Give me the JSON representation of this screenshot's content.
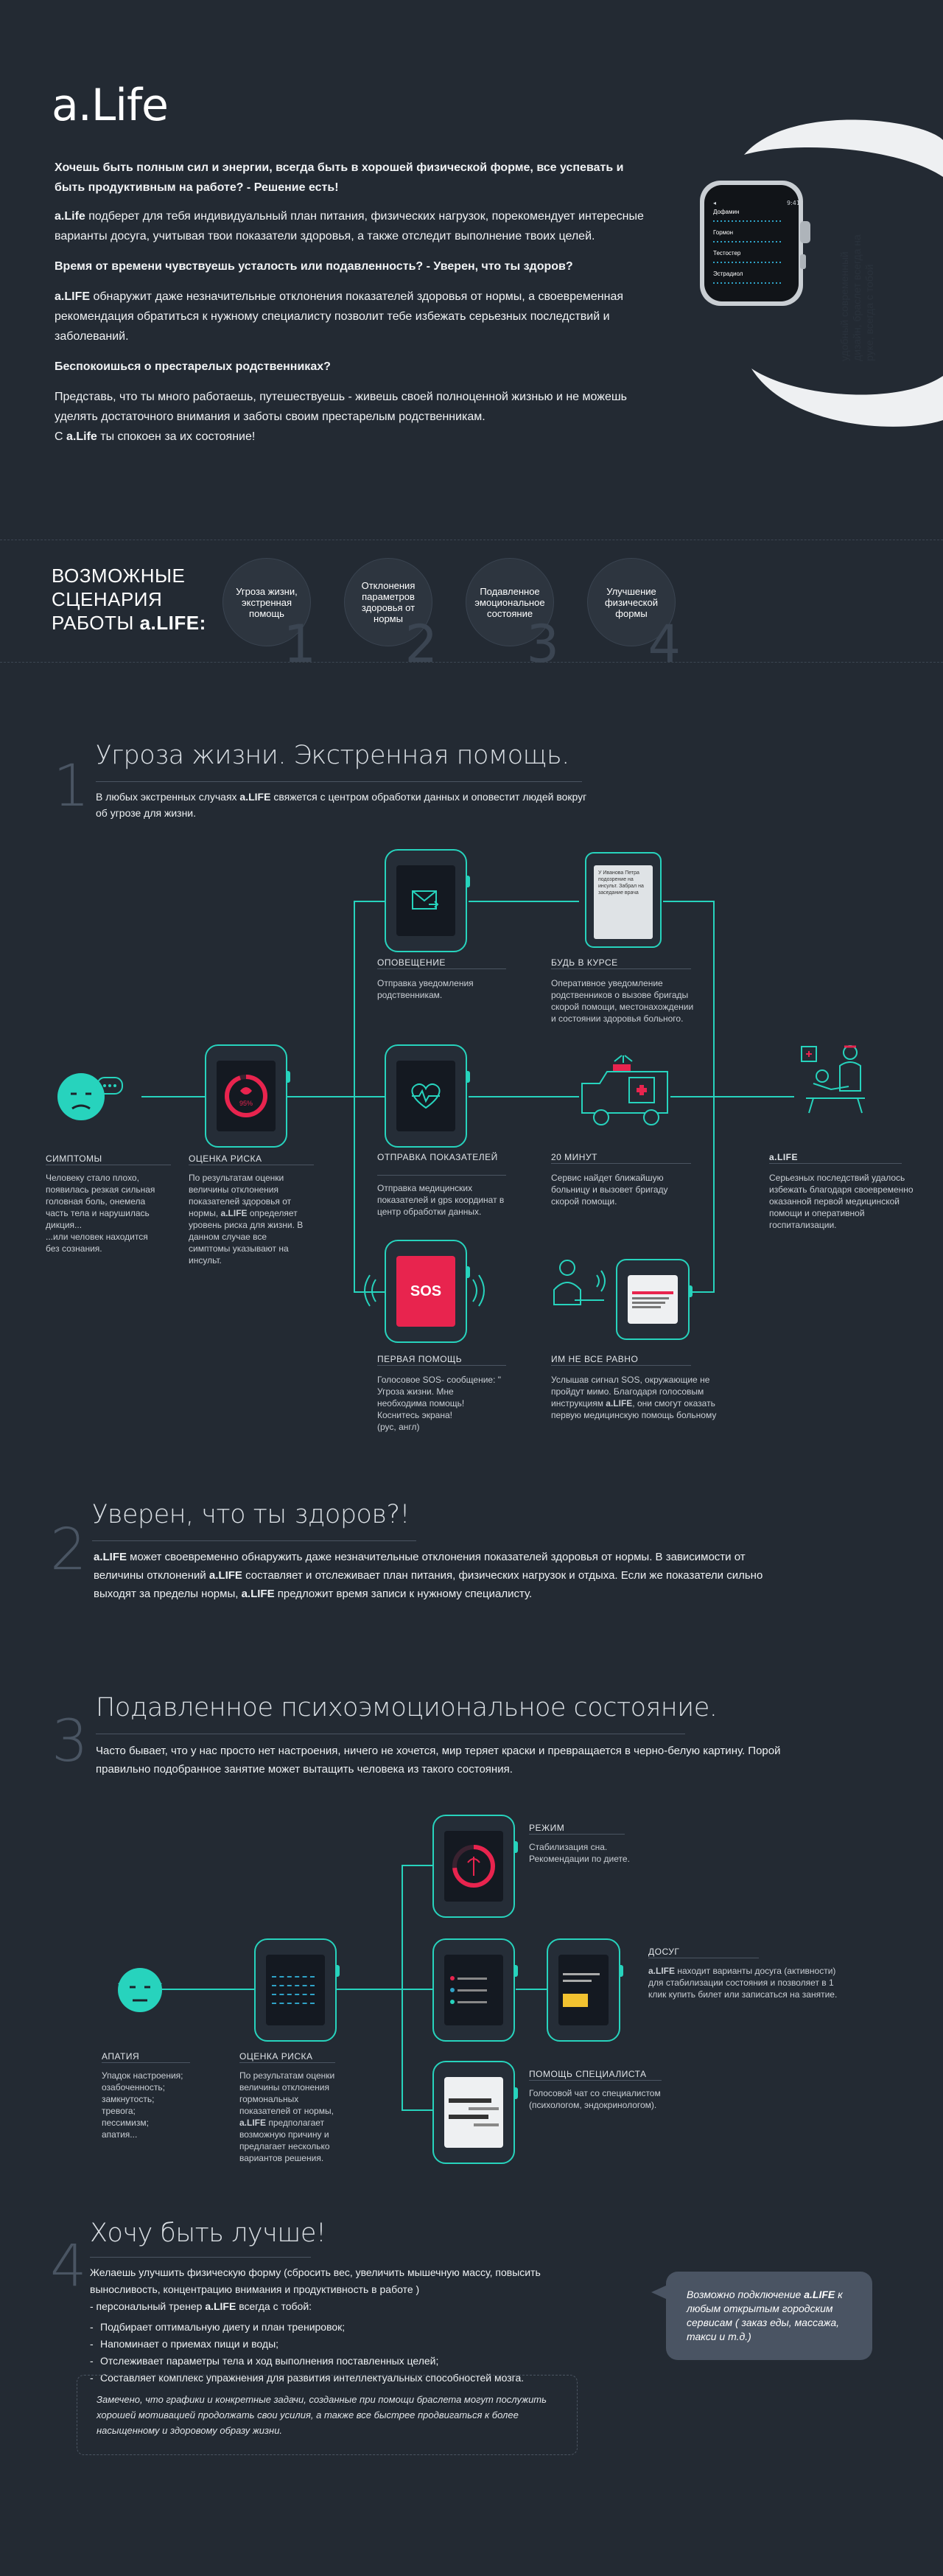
{
  "app": {
    "logo": "a.Life"
  },
  "intro": {
    "p1": "Хочешь быть полным сил и энергии, всегда быть в хорошей физической форме, все успевать и быть продуктивным на работе? - Решение есть!",
    "p2_brand": "a.Life",
    "p2": " подберет для тебя индивидуальный план питания, физических нагрузок, порекомендует интересные варианты досуга, учитывая твои показатели здоровья, а также отследит выполнение твоих целей.",
    "p3": "Время от времени чувствуешь усталость или подавленность? - Уверен, что ты здоров?",
    "p4_brand": "a.LIFE",
    "p4": " обнаружит даже незначительные отклонения показателей здоровья от нормы, а своевременная рекомендация обратиться к нужному специалисту позволит тебе избежать серьезных последствий и заболеваний.",
    "p5": "Беспокоишься о престарелых родственниках?",
    "p6": "Представь, что ты много работаешь, путешествуешь - живешь своей полноценной жизнью  и не можешь уделять достаточного внимания и заботы своим престарелым родственникам.",
    "p7_pre": "С ",
    "p7_brand": "a.Life",
    "p7": " ты спокоен за их состояние!"
  },
  "watch_hero": {
    "side_text": "удобный современный дизайн, браслет всегда на руке, всегда с тобой",
    "rows": [
      "Дофамин",
      "Гормон",
      "Тестостер",
      "Эстрадиол"
    ]
  },
  "scenarios": {
    "title_l1": "ВОЗМОЖНЫЕ",
    "title_l2": "СЦЕНАРИЯ",
    "title_l3": "РАБОТЫ ",
    "title_brand": "a.LIFE:",
    "items": [
      {
        "label": "Угроза жизни, экстренная помощь",
        "num": "1"
      },
      {
        "label": "Отклонения параметров здоровья от нормы",
        "num": "2"
      },
      {
        "label": "Подавленное эмоциональное состояние",
        "num": "3"
      },
      {
        "label": "Улучшение физической формы",
        "num": "4"
      }
    ]
  },
  "s1": {
    "num": "1",
    "title": "Угроза жизни. Экстренная помощь.",
    "text_pre": "В любых экстренных случаях ",
    "text_brand": "a.LIFE",
    "text": " свяжется с центром обработки данных и оповестит людей вокруг об угрозе для жизни.",
    "symptoms_cap": "СИМПТОМЫ",
    "symptoms_desc": "Человеку стало плохо, появилась резкая сильная головная боль, онемела часть  тела и нарушилась дикция...\n...или человек находится без  сознания.",
    "risk_cap": "ОЦЕНКА РИСКА",
    "risk_desc_1": "По результатам оценки величины  отклонения показателей здоровья от нормы, ",
    "risk_brand": "a.LIFE",
    "risk_desc_2": "  определяет уровень риска для жизни. В данном случае все симптомы  указывают на инсульт.",
    "risk_pct": "95%",
    "notify_cap": "ОПОВЕЩЕНИЕ",
    "notify_desc": "Отправка уведомления родственникам.",
    "informed_cap": "БУДЬ В КУРСЕ",
    "informed_desc": "Оперативное уведомление родственников о вызове бригады скорой помощи, местонахождении и состоянии здоровья больного.",
    "send_cap": "ОТПРАВКА ПОКАЗАТЕЛЕЙ",
    "send_desc": "Отправка медицинских показателей и gps координат в центр обработки данных.",
    "min_cap": "20 МИНУТ",
    "min_desc": "Сервис найдет ближайшую больницу и вызовет бригаду скорой помощи.",
    "first_cap": "ПЕРВАЯ ПОМОЩЬ",
    "first_desc": "Голосовое SOS- сообщение: \" Угроза жизни. Мне  необходима помощь! Коснитесь экрана!\n(рус, англ)",
    "sos": "SOS",
    "care_cap": "ИМ НЕ ВСЕ РАВНО",
    "care_desc_1": "Услышав сигнал SOS, окружающие не пройдут мимо. Благодаря голосовым инструкциям ",
    "care_brand": "a.LIFE",
    "care_desc_2": ", они смогут оказать первую медицинскую помощь больному",
    "result_brand": "a.LIFE",
    "result_desc": "Серьезных последствий удалось избежать благодаря своевременно оказанной первой медицинской помощи и оперативной госпитализации.",
    "phone_text": "У Иванова Петра подозрение на инсульт. Забрал на заседание врача"
  },
  "s2": {
    "num": "2",
    "title": "Уверен, что ты здоров?!",
    "brand": "a.LIFE",
    "t1": " может своевременно обнаружить даже незначительные отклонения показателей здоровья от нормы. В зависимости от величины отклонений ",
    "brand2": "a.LIFE",
    "t2": " составляет и отслеживает план питания, физических нагрузок и отдыха. Если же показатели сильно выходят за пределы нормы, ",
    "brand3": "a.LIFE",
    "t3": " предложит время записи к нужному специалисту."
  },
  "s3": {
    "num": "3",
    "title": "Подавленное психоэмоциональное состояние.",
    "text": "Часто бывает, что у нас просто нет настроения, ничего не хочется, мир теряет краски и превращается в черно-белую картину.  Порой правильно подобранное занятие может вытащить человека из такого состояния.",
    "apathy_cap": "АПАТИЯ",
    "apathy_desc": "Упадок настроения;\nозабоченность;\nзамкнутость;\nтревога;\nпессимизм;\nапатия...",
    "risk_cap": "ОЦЕНКА РИСКА",
    "risk_desc_1": "По результатам оценки величины отклонения гормональных показателей от нормы, ",
    "risk_brand": "a.LIFE",
    "risk_desc_2": " предполагает возможную причину и предлагает несколько вариантов решения.",
    "mode_cap": "РЕЖИМ",
    "mode_desc": "Стабилизация сна.\nРекомендации по диете.",
    "leisure_cap": "ДОСУГ",
    "leisure_brand": "a.LIFE",
    "leisure_desc": " находит варианты досуга (активности) для стабилизации состояния и позволяет в 1 клик купить билет или записаться на занятие.",
    "help_cap": "ПОМОЩЬ СПЕЦИАЛИСТА",
    "help_desc": "Голосовой чат со специалистом (психологом, эндокринологом)."
  },
  "s4": {
    "num": "4",
    "title": "Хочу быть лучше!",
    "t1": "Желаешь улучшить физическую форму (сбросить вес, увеличить мышечную массу, повысить выносливость, концентрацию внимания и продуктивность в работе )",
    "t2_pre": "- персональный тренер ",
    "t2_brand": "a.LIFE",
    "t2": " всегда с тобой:",
    "bullets": [
      "Подбирает оптимальную диету и план тренировок;",
      "Напоминает о приемах пищи и воды;",
      "Отслеживает параметры тела и ход выполнения поставленных целей;",
      "Составляет комплекс упражнения для развития интеллектуальных способностей мозга."
    ],
    "bubble_pre": "Возможно подключение ",
    "bubble_brand": "a.LIFE",
    "bubble": " к  любым открытым городским сервисам ( заказ еды, массажа, такси и т.д.)",
    "note": "Замечено, что графики и конкретные задачи, созданные при помощи браслета могут послужить хорошей мотивацией продолжать свои усилия, а также все быстрее продвигаться к более насыщенному и здоровому образу жизни."
  },
  "colors": {
    "bg": "#232a33",
    "accent": "#27d3bd",
    "sos": "#e8244e"
  }
}
